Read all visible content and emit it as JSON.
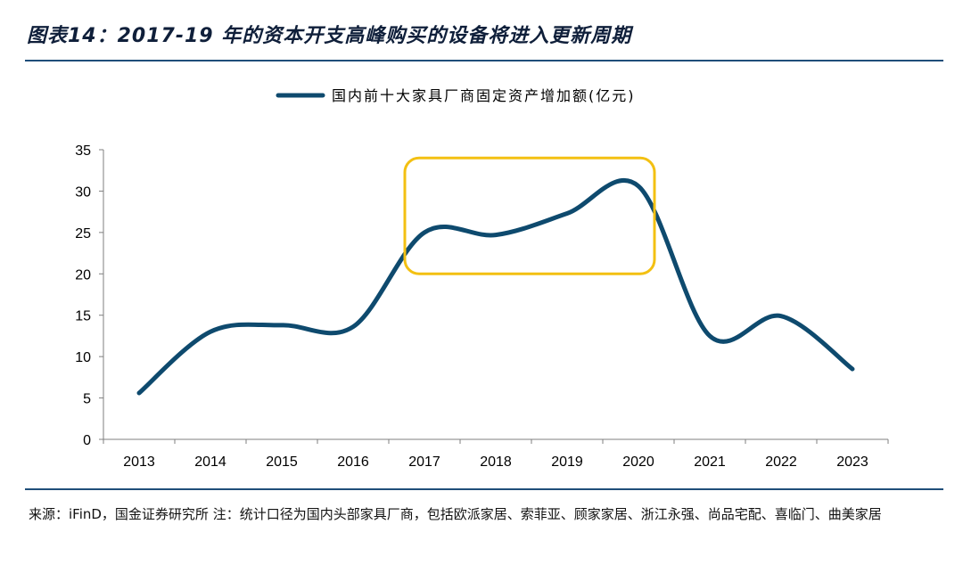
{
  "header": {
    "title": "图表14：2017-19 年的资本开支高峰购买的设备将进入更新周期"
  },
  "footer": {
    "source": "来源：iFinD，国金证券研究所 注：统计口径为国内头部家具厂商，包括欧派家居、索菲亚、顾家家居、浙江永强、尚品宅配、喜临门、曲美家居"
  },
  "colors": {
    "line": "#0e4a6e",
    "highlight": "#f3c012",
    "rule": "#1f4e79"
  },
  "chart_data": {
    "type": "line",
    "categories": [
      "2013",
      "2014",
      "2015",
      "2016",
      "2017",
      "2018",
      "2019",
      "2020",
      "2021",
      "2022",
      "2023"
    ],
    "series": [
      {
        "name": "国内前十大家具厂商固定资产增加额(亿元)",
        "values": [
          5.6,
          13.0,
          13.8,
          13.6,
          25.0,
          24.7,
          27.3,
          30.6,
          12.5,
          14.9,
          8.5
        ]
      }
    ],
    "y_ticks": [
      "0",
      "5",
      "10",
      "15",
      "20",
      "25",
      "30",
      "35"
    ],
    "ylim": [
      0,
      35
    ],
    "legend_position": "top",
    "smooth": true,
    "highlight": {
      "x_from": "2017",
      "x_to": "2020",
      "y_from": 20,
      "y_to": 34
    }
  }
}
